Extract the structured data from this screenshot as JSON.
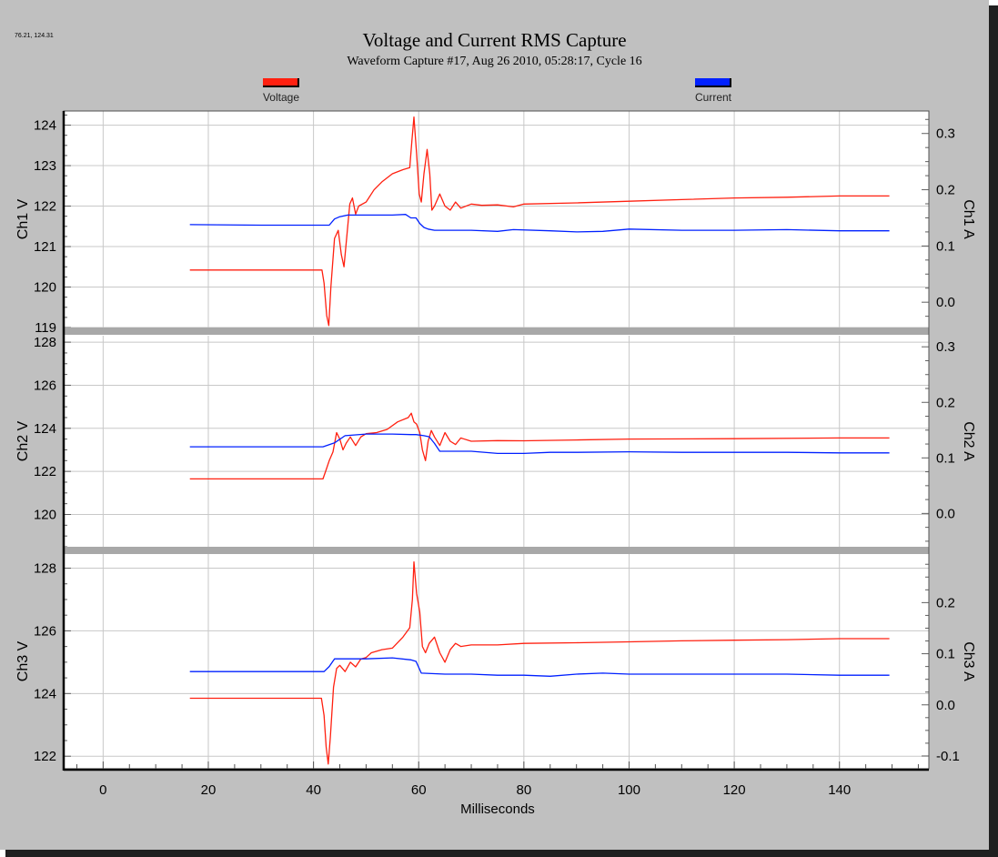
{
  "window": {
    "coord_readout": "76.21, 124.31",
    "title": "Voltage and Current RMS Capture",
    "subtitle": "Waveform Capture #17, Aug 26 2010, 05:28:17,  Cycle 16"
  },
  "legend": [
    {
      "label": "Voltage",
      "color": "#ff2010"
    },
    {
      "label": "Current",
      "color": "#0020ff"
    }
  ],
  "chart_data": {
    "type": "line",
    "xlabel": "Milliseconds",
    "xlim": [
      -7.5,
      157
    ],
    "x_ticks": [
      0,
      20,
      40,
      60,
      80,
      100,
      120,
      140
    ],
    "grid": true,
    "panels": [
      {
        "left_label": "Ch1 V",
        "right_label": "Ch1 A",
        "v_lim": [
          119,
          124.35
        ],
        "v_ticks": [
          119,
          120,
          121,
          122,
          123,
          124
        ],
        "a_lim": [
          -0.045,
          0.34
        ],
        "a_ticks": [
          0.0,
          0.1,
          0.2,
          0.3
        ],
        "series": [
          {
            "name": "Voltage",
            "axis": "left",
            "color": "#ff2010",
            "points": [
              [
                16.5,
                120.42
              ],
              [
                25,
                120.42
              ],
              [
                30,
                120.42
              ],
              [
                35,
                120.42
              ],
              [
                40,
                120.42
              ],
              [
                41.6,
                120.42
              ],
              [
                42,
                120.1
              ],
              [
                42.5,
                119.3
              ],
              [
                42.9,
                119.05
              ],
              [
                43.3,
                120.0
              ],
              [
                44,
                121.2
              ],
              [
                44.7,
                121.4
              ],
              [
                45.3,
                120.8
              ],
              [
                45.8,
                120.5
              ],
              [
                46.3,
                121.2
              ],
              [
                46.9,
                122.05
              ],
              [
                47.4,
                122.2
              ],
              [
                48,
                121.8
              ],
              [
                48.6,
                122.0
              ],
              [
                50,
                122.1
              ],
              [
                51.5,
                122.4
              ],
              [
                53,
                122.6
              ],
              [
                55,
                122.8
              ],
              [
                57,
                122.9
              ],
              [
                58.3,
                122.95
              ],
              [
                58.7,
                123.6
              ],
              [
                59.1,
                124.2
              ],
              [
                59.6,
                123.3
              ],
              [
                60.1,
                122.3
              ],
              [
                60.5,
                122.1
              ],
              [
                61,
                122.8
              ],
              [
                61.6,
                123.4
              ],
              [
                62.1,
                122.8
              ],
              [
                62.5,
                121.9
              ],
              [
                63,
                122.0
              ],
              [
                64,
                122.3
              ],
              [
                65,
                122.0
              ],
              [
                66,
                121.9
              ],
              [
                67,
                122.1
              ],
              [
                68,
                121.95
              ],
              [
                70,
                122.05
              ],
              [
                72,
                122.02
              ],
              [
                75,
                122.03
              ],
              [
                78,
                121.98
              ],
              [
                80,
                122.05
              ],
              [
                90,
                122.08
              ],
              [
                100,
                122.12
              ],
              [
                110,
                122.16
              ],
              [
                120,
                122.2
              ],
              [
                130,
                122.22
              ],
              [
                140,
                122.25
              ],
              [
                149.5,
                122.25
              ]
            ]
          },
          {
            "name": "Current",
            "axis": "right",
            "color": "#0020ff",
            "points": [
              [
                16.5,
                0.138
              ],
              [
                30,
                0.137
              ],
              [
                41.5,
                0.137
              ],
              [
                43,
                0.137
              ],
              [
                44,
                0.148
              ],
              [
                45,
                0.152
              ],
              [
                46.5,
                0.155
              ],
              [
                50,
                0.155
              ],
              [
                55,
                0.155
              ],
              [
                57.5,
                0.156
              ],
              [
                58.5,
                0.15
              ],
              [
                59.5,
                0.15
              ],
              [
                60.2,
                0.14
              ],
              [
                61,
                0.133
              ],
              [
                61.8,
                0.13
              ],
              [
                63,
                0.128
              ],
              [
                70,
                0.128
              ],
              [
                75,
                0.126
              ],
              [
                78,
                0.129
              ],
              [
                85,
                0.127
              ],
              [
                90,
                0.125
              ],
              [
                95,
                0.126
              ],
              [
                100,
                0.13
              ],
              [
                110,
                0.128
              ],
              [
                120,
                0.128
              ],
              [
                130,
                0.129
              ],
              [
                140,
                0.127
              ],
              [
                149.5,
                0.127
              ]
            ]
          }
        ]
      },
      {
        "left_label": "Ch2 V",
        "right_label": "Ch2 A",
        "v_lim": [
          118.5,
          128.3
        ],
        "v_ticks": [
          120,
          122,
          124,
          126,
          128
        ],
        "a_lim": [
          -0.06,
          0.32
        ],
        "a_ticks": [
          0.0,
          0.1,
          0.2,
          0.3
        ],
        "series": [
          {
            "name": "Voltage",
            "axis": "left",
            "color": "#ff2010",
            "points": [
              [
                16.5,
                121.65
              ],
              [
                30,
                121.65
              ],
              [
                41.8,
                121.65
              ],
              [
                42.3,
                122.0
              ],
              [
                43,
                122.5
              ],
              [
                43.7,
                122.9
              ],
              [
                44.4,
                123.8
              ],
              [
                45,
                123.5
              ],
              [
                45.6,
                123.0
              ],
              [
                46.2,
                123.3
              ],
              [
                47,
                123.6
              ],
              [
                48,
                123.2
              ],
              [
                49,
                123.6
              ],
              [
                50,
                123.75
              ],
              [
                52,
                123.8
              ],
              [
                54,
                123.95
              ],
              [
                56,
                124.3
              ],
              [
                58,
                124.5
              ],
              [
                58.6,
                124.7
              ],
              [
                59.1,
                124.3
              ],
              [
                59.6,
                124.2
              ],
              [
                60.2,
                123.8
              ],
              [
                60.7,
                123.0
              ],
              [
                61.3,
                122.5
              ],
              [
                61.8,
                123.4
              ],
              [
                62.4,
                123.9
              ],
              [
                63,
                123.6
              ],
              [
                64,
                123.2
              ],
              [
                65,
                123.8
              ],
              [
                66,
                123.4
              ],
              [
                67,
                123.25
              ],
              [
                68,
                123.55
              ],
              [
                70,
                123.4
              ],
              [
                75,
                123.43
              ],
              [
                80,
                123.42
              ],
              [
                90,
                123.46
              ],
              [
                100,
                123.5
              ],
              [
                120,
                123.52
              ],
              [
                140,
                123.55
              ],
              [
                149.5,
                123.55
              ]
            ]
          },
          {
            "name": "Current",
            "axis": "right",
            "color": "#0020ff",
            "points": [
              [
                16.5,
                0.12
              ],
              [
                30,
                0.12
              ],
              [
                41.8,
                0.12
              ],
              [
                43,
                0.124
              ],
              [
                44,
                0.127
              ],
              [
                46,
                0.14
              ],
              [
                50,
                0.143
              ],
              [
                55,
                0.143
              ],
              [
                58.5,
                0.142
              ],
              [
                59.5,
                0.142
              ],
              [
                61,
                0.14
              ],
              [
                62,
                0.138
              ],
              [
                63,
                0.126
              ],
              [
                64,
                0.112
              ],
              [
                70,
                0.112
              ],
              [
                75,
                0.108
              ],
              [
                80,
                0.108
              ],
              [
                85,
                0.11
              ],
              [
                90,
                0.11
              ],
              [
                100,
                0.111
              ],
              [
                110,
                0.11
              ],
              [
                120,
                0.11
              ],
              [
                130,
                0.11
              ],
              [
                140,
                0.109
              ],
              [
                149.5,
                0.109
              ]
            ]
          }
        ]
      },
      {
        "left_label": "Ch3 V",
        "right_label": "Ch3 A",
        "v_lim": [
          121.6,
          128.45
        ],
        "v_ticks": [
          122,
          124,
          126,
          128
        ],
        "a_lim": [
          -0.125,
          0.295
        ],
        "a_ticks": [
          -0.1,
          0.0,
          0.1,
          0.2
        ],
        "series": [
          {
            "name": "Voltage",
            "axis": "left",
            "color": "#ff2010",
            "points": [
              [
                16.5,
                123.85
              ],
              [
                30,
                123.85
              ],
              [
                41.5,
                123.85
              ],
              [
                42,
                123.3
              ],
              [
                42.4,
                122.3
              ],
              [
                42.8,
                121.75
              ],
              [
                43.2,
                122.6
              ],
              [
                43.8,
                124.2
              ],
              [
                44.4,
                124.8
              ],
              [
                45,
                124.9
              ],
              [
                46,
                124.7
              ],
              [
                47,
                125.0
              ],
              [
                48,
                124.85
              ],
              [
                49,
                125.1
              ],
              [
                50,
                125.15
              ],
              [
                51,
                125.3
              ],
              [
                53,
                125.4
              ],
              [
                55,
                125.45
              ],
              [
                57,
                125.8
              ],
              [
                58.3,
                126.1
              ],
              [
                58.8,
                127.0
              ],
              [
                59.1,
                128.2
              ],
              [
                59.6,
                127.2
              ],
              [
                60.2,
                126.6
              ],
              [
                60.7,
                125.5
              ],
              [
                61.3,
                125.3
              ],
              [
                62,
                125.6
              ],
              [
                63,
                125.8
              ],
              [
                64,
                125.3
              ],
              [
                65,
                125.0
              ],
              [
                66,
                125.4
              ],
              [
                67,
                125.6
              ],
              [
                68,
                125.5
              ],
              [
                70,
                125.55
              ],
              [
                75,
                125.55
              ],
              [
                80,
                125.6
              ],
              [
                90,
                125.62
              ],
              [
                100,
                125.65
              ],
              [
                110,
                125.68
              ],
              [
                120,
                125.7
              ],
              [
                130,
                125.72
              ],
              [
                140,
                125.75
              ],
              [
                149.5,
                125.75
              ]
            ]
          },
          {
            "name": "Current",
            "axis": "right",
            "color": "#0020ff",
            "points": [
              [
                16.5,
                0.065
              ],
              [
                30,
                0.065
              ],
              [
                42,
                0.065
              ],
              [
                43,
                0.075
              ],
              [
                44,
                0.09
              ],
              [
                50,
                0.09
              ],
              [
                55,
                0.092
              ],
              [
                58.5,
                0.088
              ],
              [
                59.5,
                0.085
              ],
              [
                60.5,
                0.062
              ],
              [
                65,
                0.06
              ],
              [
                70,
                0.06
              ],
              [
                75,
                0.058
              ],
              [
                80,
                0.058
              ],
              [
                85,
                0.056
              ],
              [
                90,
                0.06
              ],
              [
                95,
                0.062
              ],
              [
                100,
                0.06
              ],
              [
                110,
                0.06
              ],
              [
                120,
                0.06
              ],
              [
                130,
                0.06
              ],
              [
                140,
                0.058
              ],
              [
                149.5,
                0.058
              ]
            ]
          }
        ]
      }
    ]
  }
}
